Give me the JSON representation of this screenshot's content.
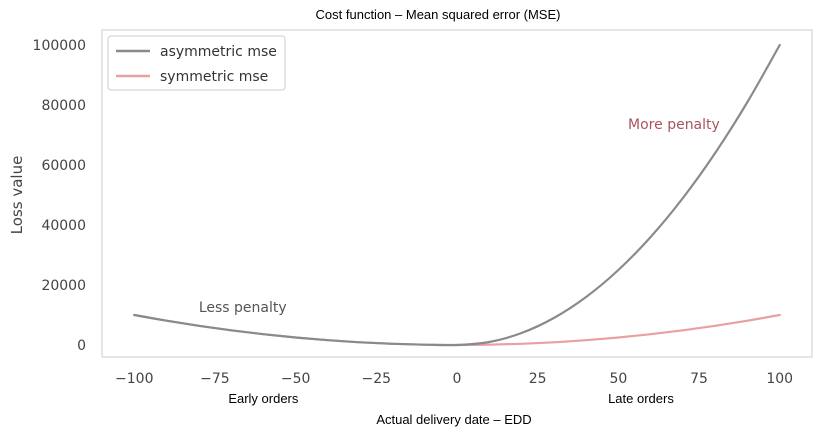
{
  "chart_data": {
    "type": "line",
    "title": "Cost function – Mean squared error (MSE)",
    "xlabel": "Actual delivery date – EDD",
    "ylabel": "Loss value",
    "xlim": [
      -110,
      110
    ],
    "ylim": [
      -4000,
      105000
    ],
    "x_ticks": [
      -100,
      -75,
      -50,
      -25,
      0,
      25,
      50,
      75,
      100
    ],
    "x_tick_labels": [
      "−100",
      "−75",
      "−50",
      "−25",
      "0",
      "25",
      "50",
      "75",
      "100"
    ],
    "y_ticks": [
      0,
      20000,
      40000,
      60000,
      80000,
      100000
    ],
    "y_tick_labels": [
      "0",
      "20000",
      "40000",
      "60000",
      "80000",
      "100000"
    ],
    "x_sublabels": [
      {
        "x": -60,
        "text": "Early orders"
      },
      {
        "x": 57,
        "text": "Late orders"
      }
    ],
    "grid": false,
    "legend_position": "top-left",
    "series": [
      {
        "name": "asymmetric mse",
        "color": "#8a8a8a",
        "x": [
          -100,
          -90,
          -80,
          -70,
          -60,
          -50,
          -40,
          -30,
          -20,
          -10,
          0,
          10,
          20,
          30,
          40,
          50,
          60,
          70,
          80,
          90,
          100
        ],
        "y": [
          10000,
          8100,
          6400,
          4900,
          3600,
          2500,
          1600,
          900,
          400,
          100,
          0,
          1000,
          4000,
          9000,
          16000,
          25000,
          36000,
          49000,
          64000,
          81000,
          100000
        ]
      },
      {
        "name": "symmetric mse",
        "color": "#e8a0a0",
        "x": [
          -100,
          -90,
          -80,
          -70,
          -60,
          -50,
          -40,
          -30,
          -20,
          -10,
          0,
          10,
          20,
          30,
          40,
          50,
          60,
          70,
          80,
          90,
          100
        ],
        "y": [
          10000,
          8100,
          6400,
          4900,
          3600,
          2500,
          1600,
          900,
          400,
          100,
          0,
          100,
          400,
          900,
          1600,
          2500,
          3600,
          4900,
          6400,
          8100,
          10000
        ]
      }
    ],
    "annotations": [
      {
        "x": -80,
        "y": 11000,
        "text": "Less penalty",
        "color": "#555555"
      },
      {
        "x": 53,
        "y": 72000,
        "text": "More penalty",
        "color": "#a85560"
      }
    ]
  }
}
